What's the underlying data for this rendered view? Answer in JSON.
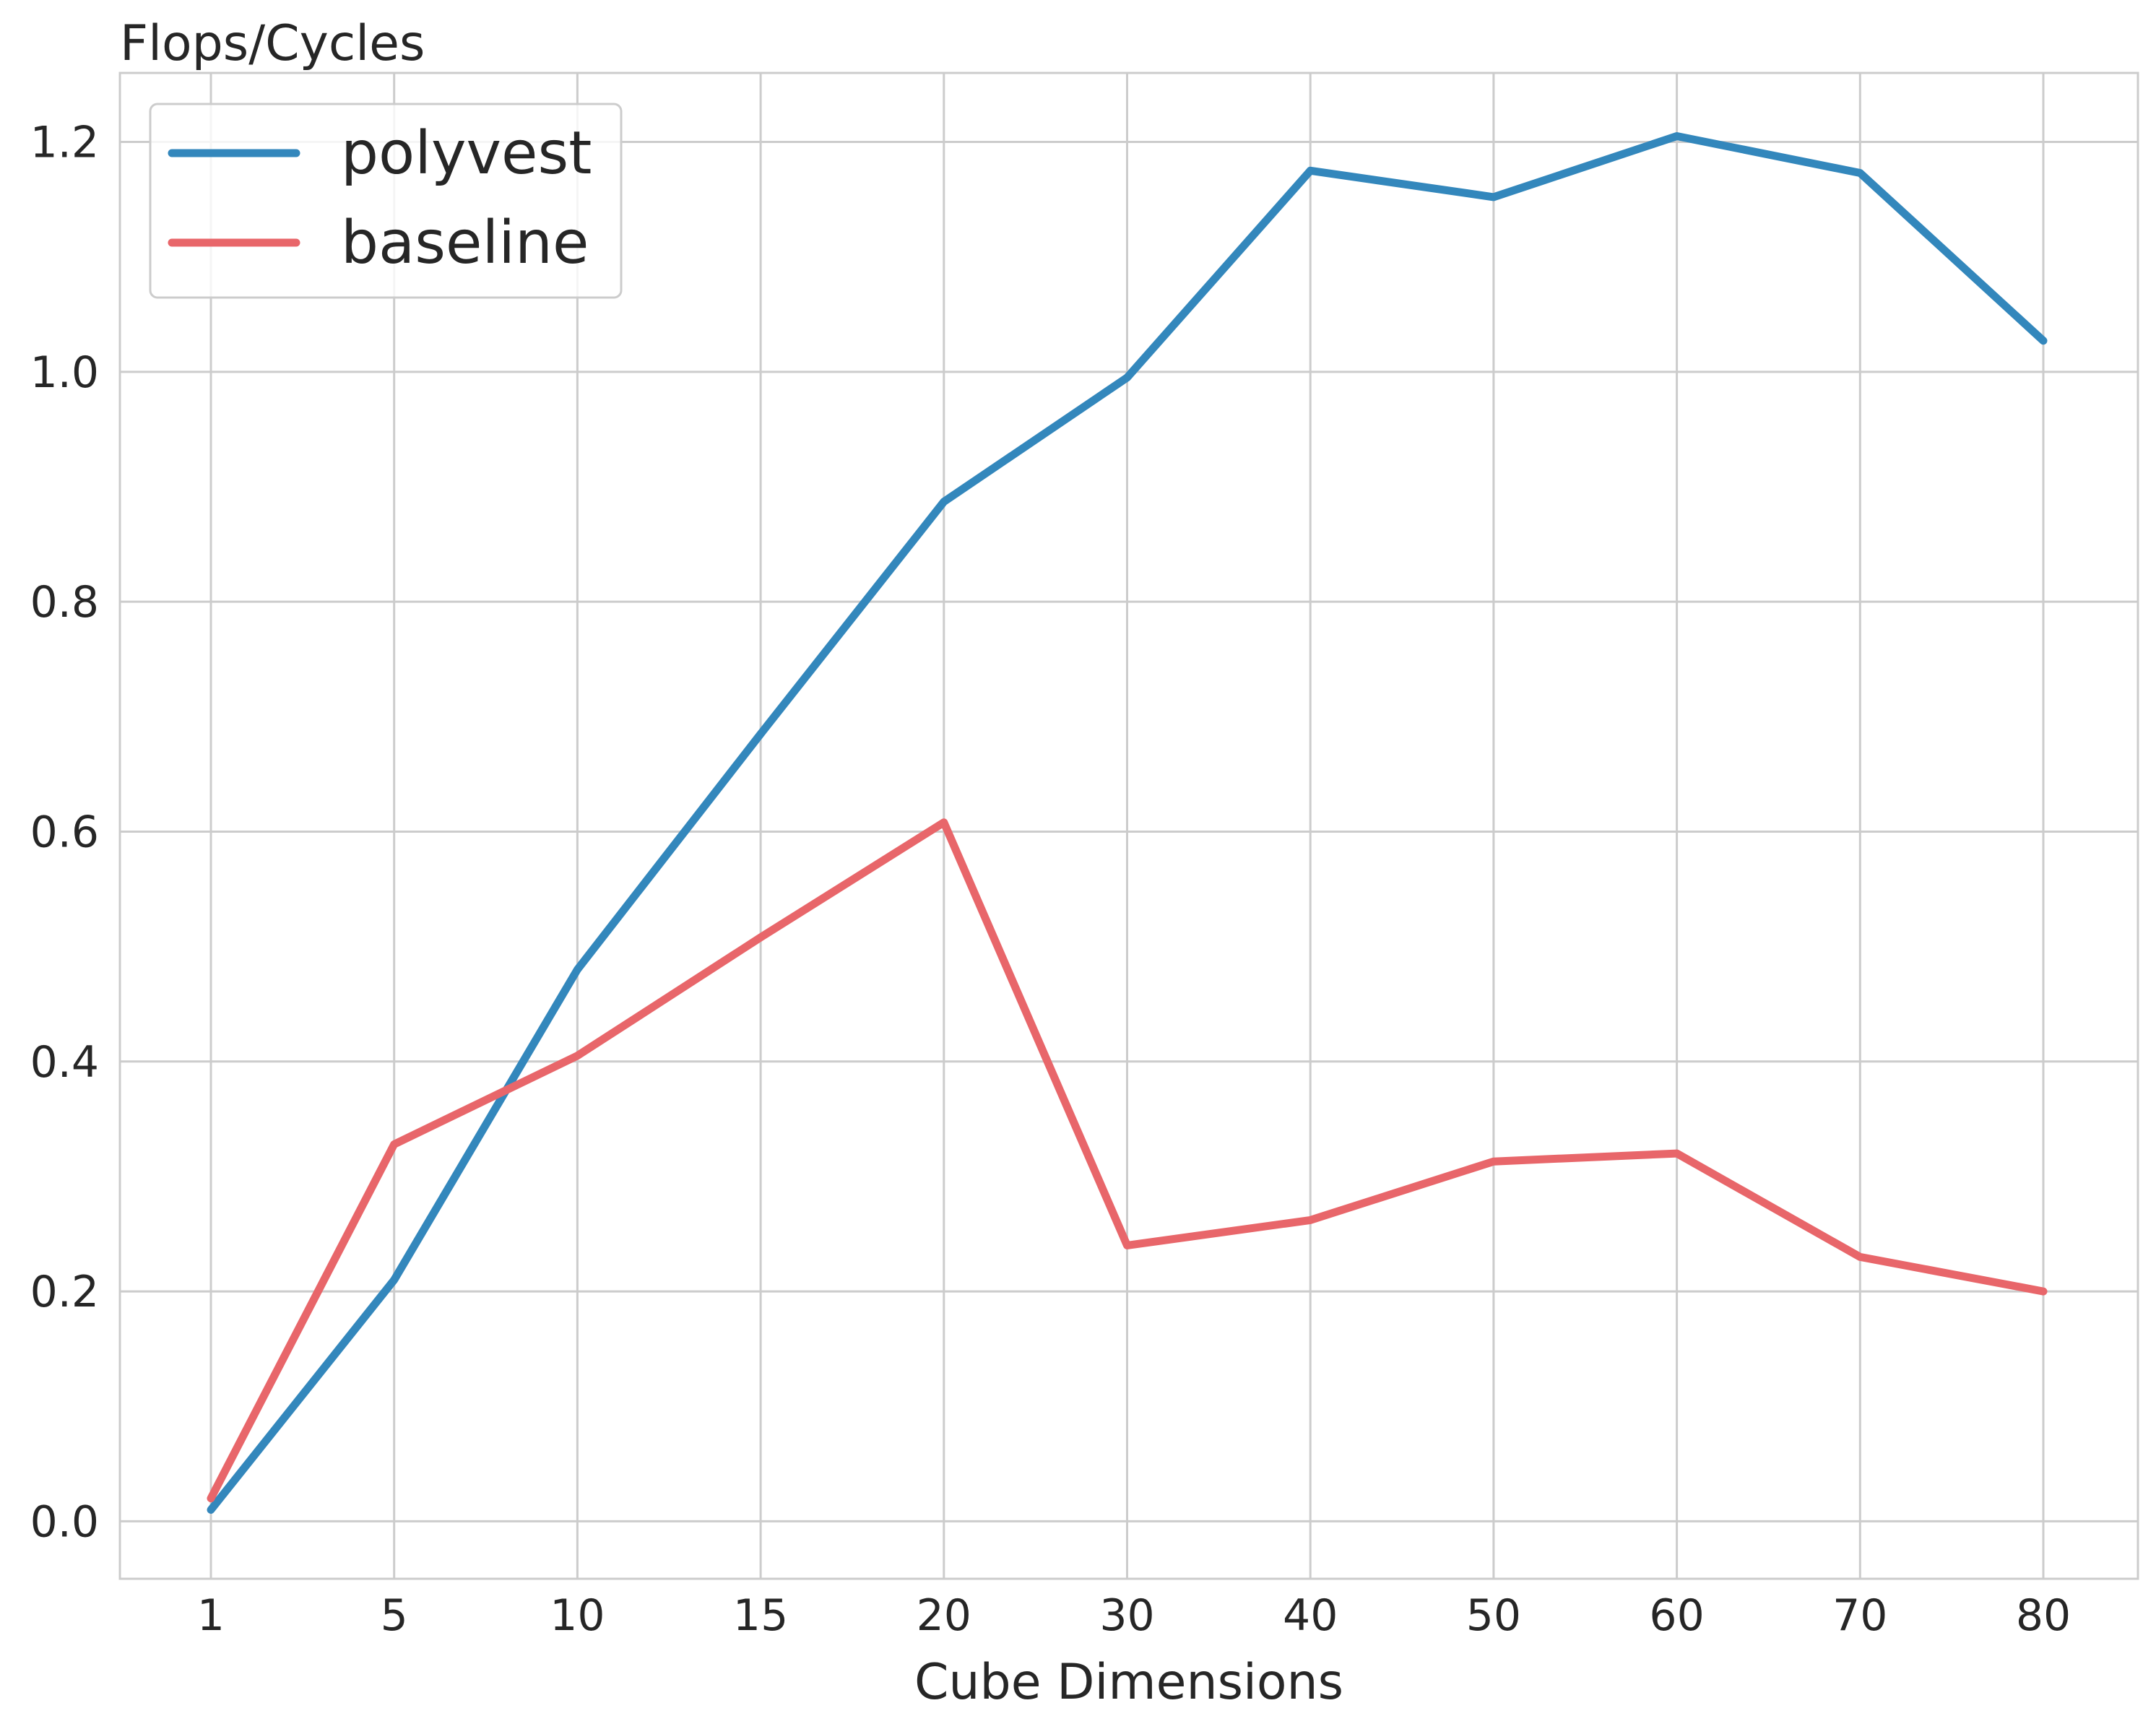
{
  "chart_data": {
    "type": "line",
    "ylabel": "Flops/Cycles",
    "xlabel": "Cube Dimensions",
    "categories": [
      "1",
      "5",
      "10",
      "15",
      "20",
      "30",
      "40",
      "50",
      "60",
      "70",
      "80"
    ],
    "ylim": [
      -0.05,
      1.26
    ],
    "yticks": [
      "0.0",
      "0.2",
      "0.4",
      "0.6",
      "0.8",
      "1.0",
      "1.2"
    ],
    "grid": true,
    "legend_position": "top-left",
    "series": [
      {
        "name": "polyvest",
        "color": "#3387bc",
        "values": [
          0.01,
          0.21,
          0.48,
          0.685,
          0.887,
          0.995,
          1.175,
          1.152,
          1.205,
          1.173,
          1.027
        ]
      },
      {
        "name": "baseline",
        "color": "#e8666a",
        "values": [
          0.02,
          0.328,
          0.405,
          0.508,
          0.608,
          0.24,
          0.262,
          0.313,
          0.32,
          0.23,
          0.2
        ]
      }
    ]
  }
}
